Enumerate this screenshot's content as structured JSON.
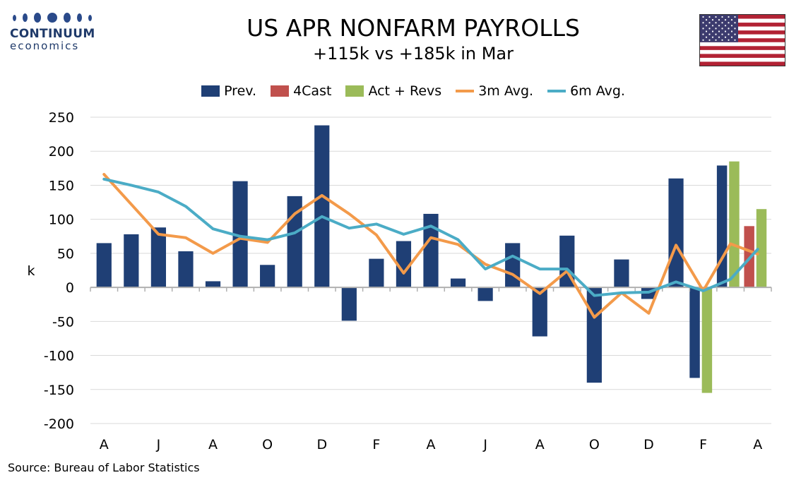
{
  "logo": {
    "name": "CONTINUUM",
    "sub": "economics"
  },
  "title": "US APR NONFARM PAYROLLS",
  "subtitle": "+115k vs +185k in Mar",
  "source": "Source: Bureau of Labor Statistics",
  "flag_icon": "us-flag-icon",
  "colors": {
    "prev": "#1f3f75",
    "forecast": "#c0504d",
    "actual": "#9bbb59",
    "avg3": "#f39a4a",
    "avg6": "#4bacc6",
    "grid": "#d9d9d9"
  },
  "chart_data": {
    "type": "bar",
    "ylabel": "k",
    "ylim": [
      -200,
      250
    ],
    "yticks": [
      250,
      200,
      150,
      100,
      50,
      0,
      -50,
      -100,
      -150,
      -200
    ],
    "x_tick_labels": [
      "A",
      "J",
      "A",
      "O",
      "D",
      "F",
      "A",
      "J",
      "A",
      "O",
      "D",
      "F",
      "A"
    ],
    "grid": true,
    "legend_position": "top-center",
    "legend": [
      "Prev.",
      "4Cast",
      "Act + Revs",
      "3m Avg.",
      "6m Avg."
    ],
    "months": 25,
    "series": [
      {
        "name": "Prev.",
        "type": "bar",
        "values": [
          65,
          78,
          88,
          53,
          9,
          156,
          33,
          134,
          238,
          -49,
          42,
          68,
          108,
          13,
          -20,
          65,
          -72,
          76,
          -140,
          41,
          -17,
          160,
          -133,
          179,
          null
        ]
      },
      {
        "name": "4Cast",
        "type": "bar",
        "values": [
          null,
          null,
          null,
          null,
          null,
          null,
          null,
          null,
          null,
          null,
          null,
          null,
          null,
          null,
          null,
          null,
          null,
          null,
          null,
          null,
          null,
          null,
          null,
          null,
          90
        ]
      },
      {
        "name": "Act + Revs",
        "type": "bar",
        "values": [
          null,
          null,
          null,
          null,
          null,
          null,
          null,
          null,
          null,
          null,
          null,
          null,
          null,
          null,
          null,
          null,
          null,
          null,
          null,
          null,
          null,
          null,
          -155,
          185,
          115
        ]
      },
      {
        "name": "3m Avg.",
        "type": "line",
        "values": [
          166,
          122,
          78,
          73,
          50,
          72,
          66,
          108,
          135,
          108,
          77,
          21,
          73,
          63,
          34,
          19,
          -9,
          24,
          -44,
          -8,
          -38,
          62,
          -5,
          64,
          49
        ]
      },
      {
        "name": "6m Avg.",
        "type": "line",
        "values": [
          159,
          150,
          140,
          119,
          86,
          75,
          70,
          80,
          104,
          87,
          93,
          78,
          90,
          70,
          27,
          46,
          27,
          27,
          -12,
          -8,
          -7,
          8,
          -5,
          12,
          56
        ]
      }
    ]
  }
}
